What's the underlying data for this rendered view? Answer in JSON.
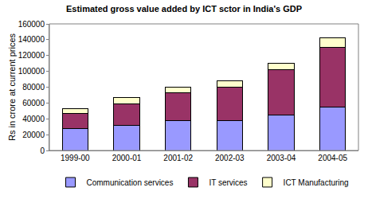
{
  "chart_data": {
    "type": "bar",
    "title": "Estimated gross value added by ICT sctor in India's GDP",
    "y_label": "Rs in crore at current prices",
    "categories": [
      "1999-00",
      "2000-01",
      "2001-02",
      "2002-03",
      "2003-04",
      "2004-05"
    ],
    "series": [
      {
        "name": "Communication services",
        "color": "#9999ff",
        "values": [
          28000,
          32000,
          38000,
          38000,
          45000,
          55000
        ]
      },
      {
        "name": "IT services",
        "color": "#993366",
        "values": [
          19000,
          27000,
          35000,
          42000,
          57000,
          75000
        ]
      },
      {
        "name": "ICT Manufacturing",
        "color": "#ffffcc",
        "values": [
          6000,
          8000,
          7000,
          8000,
          8000,
          12000
        ]
      }
    ],
    "ylim": [
      0,
      160000
    ],
    "yticks": [
      0,
      20000,
      40000,
      60000,
      80000,
      100000,
      120000,
      140000,
      160000
    ],
    "stacked": true,
    "grid": false,
    "legend": "bottom"
  }
}
